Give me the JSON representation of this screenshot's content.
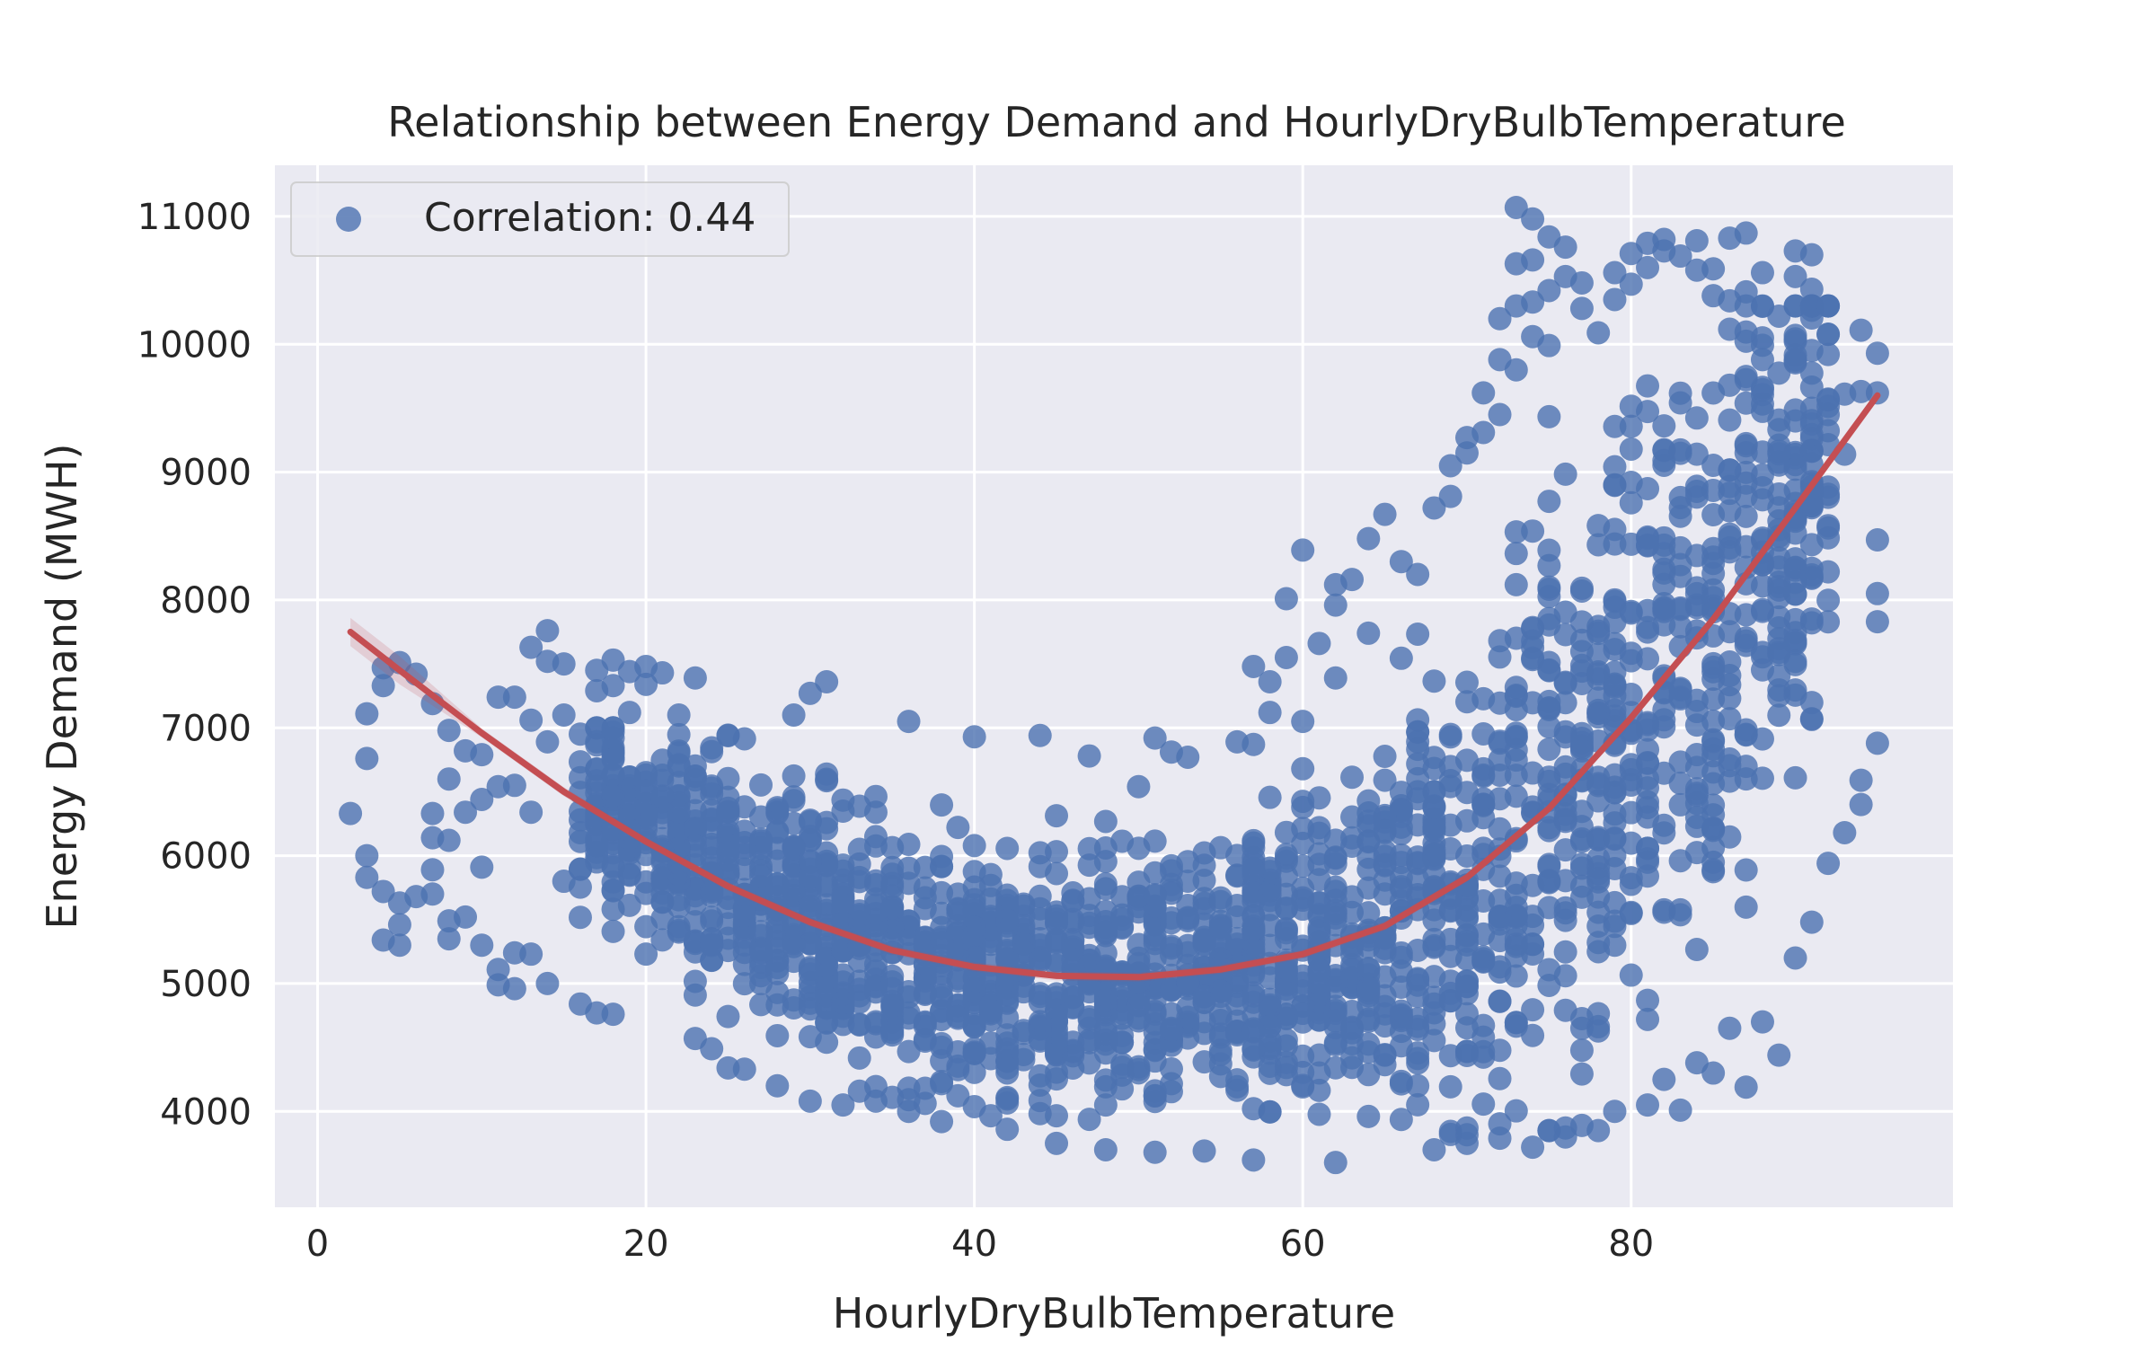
{
  "chart_data": {
    "type": "scatter",
    "title": "Relationship between Energy Demand and HourlyDryBulbTemperature",
    "xlabel": "HourlyDryBulbTemperature",
    "ylabel": "Energy Demand (MWH)",
    "xlim": [
      -2.6,
      99.6
    ],
    "ylim": [
      3250,
      11400
    ],
    "xticks": [
      0,
      20,
      40,
      60,
      80
    ],
    "yticks": [
      4000,
      5000,
      6000,
      7000,
      8000,
      9000,
      10000,
      11000
    ],
    "grid": true,
    "legend_position": "top-left",
    "style": "seaborn-darkgrid",
    "series": [
      {
        "name": "Correlation: 0.44",
        "kind": "scatter",
        "color": "#4c72b0",
        "x_range": [
          2,
          95
        ],
        "y_range": [
          3600,
          11050
        ],
        "points": [
          [
            2,
            6330
          ],
          [
            3,
            6760
          ],
          [
            3,
            7110
          ],
          [
            3,
            6000
          ],
          [
            3,
            5830
          ],
          [
            4,
            7470
          ],
          [
            4,
            7330
          ],
          [
            4,
            5720
          ],
          [
            4,
            5340
          ],
          [
            5,
            7510
          ],
          [
            5,
            5630
          ],
          [
            5,
            5460
          ],
          [
            5,
            5300
          ],
          [
            6,
            7420
          ],
          [
            6,
            5680
          ],
          [
            7,
            7190
          ],
          [
            7,
            6330
          ],
          [
            7,
            6140
          ],
          [
            7,
            5890
          ],
          [
            7,
            5700
          ],
          [
            8,
            6980
          ],
          [
            8,
            6600
          ],
          [
            8,
            6120
          ],
          [
            8,
            5490
          ],
          [
            8,
            5350
          ],
          [
            9,
            6820
          ],
          [
            9,
            6340
          ],
          [
            9,
            5520
          ],
          [
            10,
            6790
          ],
          [
            10,
            6440
          ],
          [
            10,
            5910
          ],
          [
            10,
            5300
          ],
          [
            11,
            7240
          ],
          [
            11,
            6540
          ],
          [
            11,
            5110
          ],
          [
            11,
            4990
          ],
          [
            12,
            7240
          ],
          [
            12,
            6550
          ],
          [
            12,
            5240
          ],
          [
            12,
            4960
          ],
          [
            13,
            7630
          ],
          [
            13,
            7060
          ],
          [
            13,
            6340
          ],
          [
            13,
            5230
          ],
          [
            14,
            7760
          ],
          [
            14,
            7520
          ],
          [
            14,
            6890
          ],
          [
            14,
            5000
          ],
          [
            15,
            7500
          ],
          [
            15,
            7100
          ],
          [
            15,
            5800
          ],
          [
            16,
            6610
          ],
          [
            16,
            4840
          ],
          [
            17,
            7450
          ],
          [
            17,
            7290
          ],
          [
            17,
            4770
          ],
          [
            18,
            7530
          ],
          [
            18,
            7330
          ],
          [
            18,
            4760
          ],
          [
            19,
            7440
          ],
          [
            19,
            7120
          ],
          [
            20,
            7480
          ],
          [
            20,
            7340
          ],
          [
            21,
            7430
          ],
          [
            22,
            7100
          ],
          [
            23,
            7390
          ],
          [
            23,
            4570
          ],
          [
            24,
            4490
          ],
          [
            25,
            4340
          ],
          [
            26,
            4330
          ],
          [
            28,
            4200
          ],
          [
            29,
            7100
          ],
          [
            30,
            7270
          ],
          [
            30,
            4080
          ],
          [
            31,
            7360
          ],
          [
            32,
            4050
          ],
          [
            34,
            4080
          ],
          [
            36,
            7050
          ],
          [
            36,
            4000
          ],
          [
            38,
            3920
          ],
          [
            40,
            6930
          ],
          [
            42,
            3860
          ],
          [
            44,
            6940
          ],
          [
            45,
            3750
          ],
          [
            47,
            6780
          ],
          [
            48,
            3700
          ],
          [
            50,
            6540
          ],
          [
            51,
            6920
          ],
          [
            51,
            3680
          ],
          [
            52,
            6810
          ],
          [
            53,
            6770
          ],
          [
            54,
            3690
          ],
          [
            56,
            6890
          ],
          [
            57,
            7480
          ],
          [
            57,
            6870
          ],
          [
            57,
            3620
          ],
          [
            58,
            7360
          ],
          [
            58,
            7120
          ],
          [
            59,
            8010
          ],
          [
            59,
            7550
          ],
          [
            60,
            8390
          ],
          [
            60,
            7050
          ],
          [
            61,
            7660
          ],
          [
            62,
            8120
          ],
          [
            62,
            7960
          ],
          [
            62,
            7390
          ],
          [
            62,
            3600
          ],
          [
            63,
            8160
          ],
          [
            64,
            8480
          ],
          [
            64,
            7740
          ],
          [
            65,
            8670
          ],
          [
            66,
            8300
          ],
          [
            67,
            8200
          ],
          [
            68,
            8720
          ],
          [
            68,
            3700
          ],
          [
            69,
            9050
          ],
          [
            69,
            8810
          ],
          [
            70,
            9270
          ],
          [
            70,
            9150
          ],
          [
            71,
            9620
          ],
          [
            71,
            9310
          ],
          [
            72,
            10200
          ],
          [
            72,
            9880
          ],
          [
            72,
            9450
          ],
          [
            73,
            11070
          ],
          [
            73,
            10630
          ],
          [
            73,
            10300
          ],
          [
            73,
            9800
          ],
          [
            74,
            10980
          ],
          [
            74,
            10660
          ],
          [
            74,
            10330
          ],
          [
            74,
            10060
          ],
          [
            74,
            3720
          ],
          [
            75,
            10840
          ],
          [
            75,
            10420
          ],
          [
            75,
            9990
          ],
          [
            76,
            10760
          ],
          [
            76,
            10530
          ],
          [
            76,
            3800
          ],
          [
            77,
            10480
          ],
          [
            77,
            10280
          ],
          [
            78,
            10090
          ],
          [
            78,
            3850
          ],
          [
            79,
            10560
          ],
          [
            79,
            10350
          ],
          [
            79,
            4000
          ],
          [
            80,
            10710
          ],
          [
            80,
            10470
          ],
          [
            81,
            10790
          ],
          [
            81,
            10600
          ],
          [
            81,
            4050
          ],
          [
            82,
            10820
          ],
          [
            82,
            10730
          ],
          [
            82,
            4250
          ],
          [
            83,
            10690
          ],
          [
            83,
            4010
          ],
          [
            84,
            10810
          ],
          [
            84,
            10580
          ],
          [
            84,
            4380
          ],
          [
            85,
            10590
          ],
          [
            85,
            10380
          ],
          [
            85,
            4300
          ],
          [
            86,
            10830
          ],
          [
            86,
            10340
          ],
          [
            86,
            4650
          ],
          [
            87,
            10870
          ],
          [
            87,
            10410
          ],
          [
            87,
            4190
          ],
          [
            88,
            10560
          ],
          [
            88,
            10050
          ],
          [
            88,
            4700
          ],
          [
            89,
            10220
          ],
          [
            89,
            4440
          ],
          [
            90,
            10730
          ],
          [
            90,
            10530
          ],
          [
            90,
            5200
          ],
          [
            91,
            10700
          ],
          [
            91,
            10430
          ],
          [
            91,
            5480
          ],
          [
            92,
            9920
          ],
          [
            92,
            9450
          ],
          [
            92,
            5940
          ],
          [
            93,
            9610
          ],
          [
            93,
            9140
          ],
          [
            93,
            6180
          ],
          [
            94,
            10110
          ],
          [
            94,
            9630
          ],
          [
            94,
            6590
          ],
          [
            94,
            6400
          ],
          [
            95,
            9930
          ],
          [
            95,
            9620
          ],
          [
            95,
            8470
          ],
          [
            95,
            8050
          ],
          [
            95,
            7830
          ],
          [
            95,
            6880
          ]
        ]
      },
      {
        "kind": "line",
        "fit": "polynomial-order-2",
        "color": "#c44e52",
        "x": [
          2,
          5,
          10,
          15,
          20,
          25,
          30,
          35,
          40,
          45,
          50,
          55,
          60,
          65,
          70,
          75,
          80,
          85,
          90,
          95
        ],
        "y": [
          7750,
          7450,
          6960,
          6500,
          6110,
          5760,
          5480,
          5260,
          5130,
          5060,
          5050,
          5110,
          5230,
          5450,
          5830,
          6370,
          7080,
          7850,
          8720,
          9600
        ]
      }
    ]
  }
}
